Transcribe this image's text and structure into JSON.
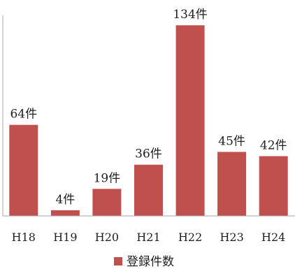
{
  "chart_data": {
    "type": "bar",
    "categories": [
      "H18",
      "H19",
      "H20",
      "H21",
      "H22",
      "H23",
      "H24"
    ],
    "values": [
      64,
      4,
      19,
      36,
      134,
      45,
      42
    ],
    "data_labels": [
      "64件",
      "4件",
      "19件",
      "36件",
      "134件",
      "45件",
      "42件"
    ],
    "series": [
      {
        "name": "登録件数",
        "values": [
          64,
          4,
          19,
          36,
          134,
          45,
          42
        ]
      }
    ],
    "ylim": [
      0,
      140
    ],
    "grid": false,
    "legend_position": "bottom",
    "colors": {
      "bar": "#c0504d",
      "axis": "#a6a6a6"
    }
  }
}
